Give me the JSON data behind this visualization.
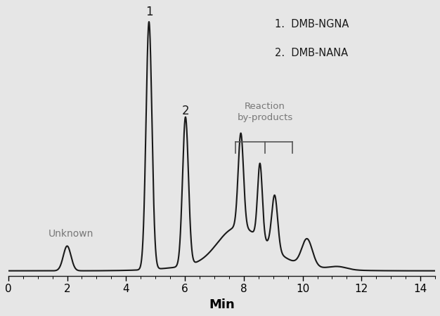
{
  "background_color": "#e6e6e6",
  "plot_bg_color": "#e6e6e6",
  "line_color": "#1a1a1a",
  "line_width": 1.5,
  "xlim": [
    0,
    14.5
  ],
  "ylim": [
    -0.02,
    1.05
  ],
  "xlabel": "Min",
  "xlabel_fontsize": 13,
  "tick_fontsize": 11,
  "annotation_color": "#777777",
  "peak_label_color": "#1a1a1a",
  "legend_lines": [
    "1.  DMB-NGNA",
    "2.  DMB-NANA"
  ],
  "unknown_label": "Unknown",
  "byproducts_label": "Reaction\nby-products",
  "bracket_color": "#555555"
}
